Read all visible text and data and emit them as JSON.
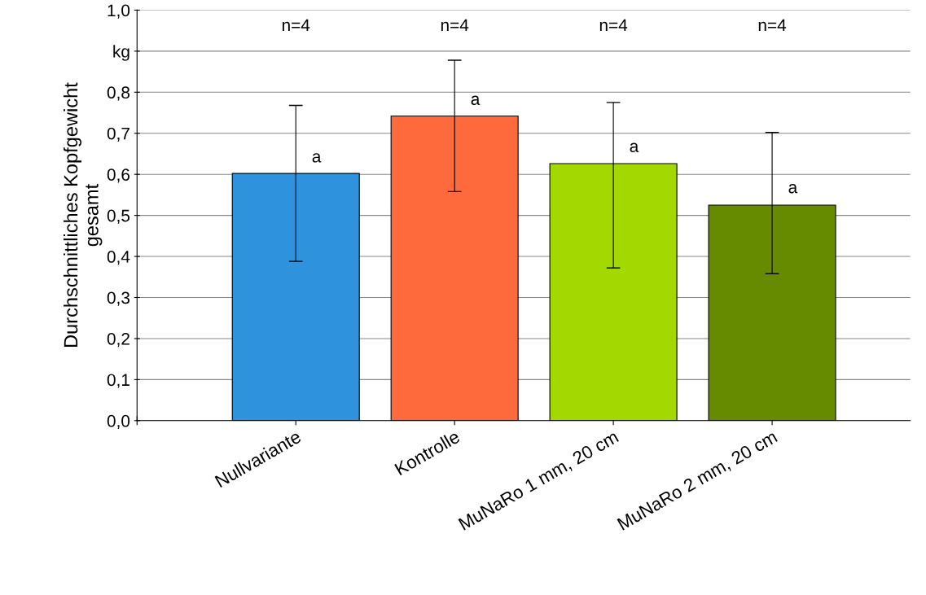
{
  "chart_data": {
    "type": "bar",
    "ylabel": "Durchschnittliches Kopfgewicht\ngesamt",
    "categories": [
      null,
      "Nullvariante",
      "Kontrolle",
      "MuNaRo 1 mm, 20 cm",
      "MuNaRo 2 mm, 20 cm"
    ],
    "values": [
      null,
      0.602,
      0.742,
      0.626,
      0.525
    ],
    "colors": [
      "#2e93dc",
      "#2e93dc",
      "#ff6a3d",
      "#a3d900",
      "#668a00"
    ],
    "errors": [
      null,
      [
        0.388,
        0.768
      ],
      [
        0.558,
        0.878
      ],
      [
        0.372,
        0.775
      ],
      [
        0.358,
        0.702
      ]
    ],
    "ylim": [
      0,
      1
    ],
    "yticks": [
      {
        "value": 0,
        "label": "0,0"
      },
      {
        "value": 0.1,
        "label": "0,1"
      },
      {
        "value": 0.2,
        "label": "0,2"
      },
      {
        "value": 0.3,
        "label": "0,3"
      },
      {
        "value": 0.4,
        "label": "0,4"
      },
      {
        "value": 0.5,
        "label": "0,5"
      },
      {
        "value": 0.6,
        "label": "0,6"
      },
      {
        "value": 0.7,
        "label": "0,7"
      },
      {
        "value": 0.8,
        "label": "0,8"
      },
      {
        "value": 0.9,
        "label": "kg"
      },
      {
        "value": 1,
        "label": "1,0"
      }
    ],
    "annotations": [
      {
        "text": "a",
        "x": "Nullvariante",
        "y": 0.64
      },
      {
        "text": "a",
        "x": "Kontrolle",
        "y": 0.78
      },
      {
        "text": "a",
        "x": "MuNaRo 1 mm, 20 cm",
        "y": 0.665
      },
      {
        "text": "a",
        "x": "MuNaRo 2 mm, 20 cm",
        "y": 0.565
      },
      "n=4",
      "n=4",
      "n=4",
      "n=4"
    ],
    "grid": "y",
    "legend": false
  }
}
